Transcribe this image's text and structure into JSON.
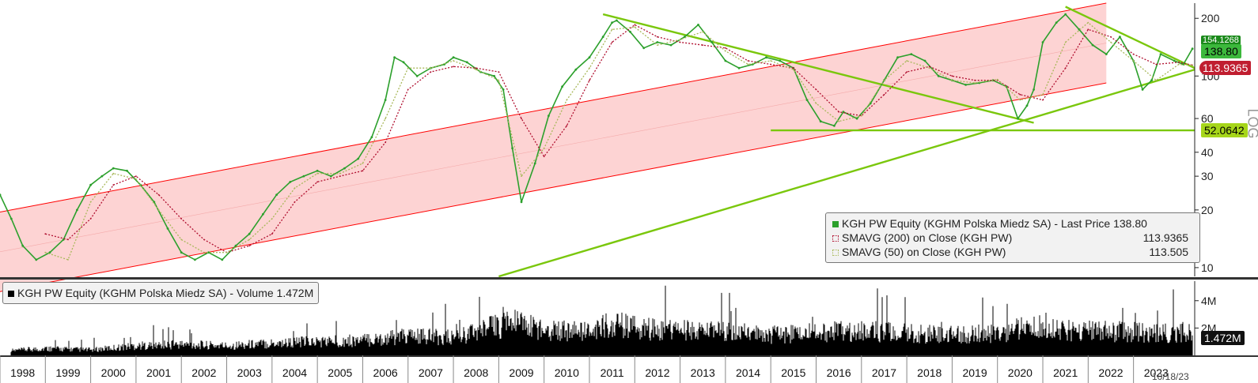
{
  "chart_data": [
    {
      "type": "line",
      "title": "",
      "xlabel": "",
      "ylabel": "",
      "y_scale": "log",
      "ylim": [
        9,
        240
      ],
      "y_ticks": [
        10,
        20,
        30,
        40,
        60,
        100,
        200
      ],
      "x_ticks": [
        "1998",
        "1999",
        "2000",
        "2001",
        "2002",
        "2003",
        "2004",
        "2005",
        "2006",
        "2007",
        "2008",
        "2009",
        "2010",
        "2011",
        "2012",
        "2013",
        "2014",
        "2015",
        "2016",
        "2017",
        "2018",
        "2019",
        "2020",
        "2021",
        "2022",
        "2023"
      ],
      "x_end_label": "10/18/23",
      "grid": false,
      "legend_position": "bottom-right",
      "series": [
        {
          "name": "KGH PW Equity (KGHM Polska Miedz SA) - Last Price",
          "color": "#2ca02c",
          "last_value": "138.80",
          "x": [
            1997.5,
            1997.75,
            1998.0,
            1998.3,
            1998.6,
            1998.9,
            1999.2,
            1999.5,
            1999.75,
            2000.0,
            2000.3,
            2000.6,
            2000.9,
            2001.2,
            2001.5,
            2001.8,
            2002.1,
            2002.4,
            2002.7,
            2003.0,
            2003.3,
            2003.6,
            2003.9,
            2004.2,
            2004.5,
            2004.8,
            2005.1,
            2005.4,
            2005.7,
            2006.0,
            2006.2,
            2006.4,
            2006.7,
            2007.0,
            2007.3,
            2007.5,
            2007.8,
            2008.1,
            2008.4,
            2008.6,
            2008.8,
            2009.0,
            2009.3,
            2009.6,
            2009.9,
            2010.2,
            2010.5,
            2010.8,
            2011.0,
            2011.1,
            2011.4,
            2011.7,
            2012.0,
            2012.3,
            2012.6,
            2012.9,
            2013.2,
            2013.5,
            2013.8,
            2014.1,
            2014.4,
            2014.7,
            2015.0,
            2015.3,
            2015.6,
            2015.9,
            2016.1,
            2016.4,
            2016.7,
            2017.0,
            2017.3,
            2017.6,
            2017.9,
            2018.2,
            2018.5,
            2018.8,
            2019.1,
            2019.4,
            2019.7,
            2019.95,
            2020.15,
            2020.3,
            2020.5,
            2020.8,
            2021.0,
            2021.3,
            2021.6,
            2021.9,
            2022.2,
            2022.5,
            2022.7,
            2022.9,
            2023.1,
            2023.4,
            2023.6,
            2023.8
          ],
          "y": [
            24,
            18,
            13,
            11,
            12,
            14,
            20,
            27,
            30,
            33,
            32,
            27,
            22,
            16,
            12,
            11,
            12,
            11,
            13,
            15,
            19,
            24,
            28,
            30,
            32,
            30,
            33,
            37,
            48,
            75,
            125,
            118,
            100,
            110,
            115,
            125,
            118,
            105,
            100,
            85,
            42,
            22,
            35,
            62,
            88,
            108,
            125,
            160,
            190,
            195,
            170,
            140,
            150,
            145,
            160,
            185,
            150,
            120,
            110,
            115,
            125,
            120,
            110,
            75,
            58,
            55,
            65,
            60,
            72,
            95,
            125,
            130,
            120,
            100,
            95,
            90,
            92,
            95,
            88,
            60,
            70,
            85,
            150,
            190,
            210,
            175,
            145,
            130,
            160,
            120,
            85,
            95,
            130,
            120,
            115,
            138.8
          ]
        },
        {
          "name": "SMAVG (200) on Close (KGH PW)",
          "color": "#b01030",
          "last_value": "113.9365",
          "x": [
            1998.5,
            1999.0,
            1999.5,
            2000.0,
            2000.5,
            2001.0,
            2001.5,
            2002.0,
            2002.5,
            2003.0,
            2003.5,
            2004.0,
            2004.5,
            2005.0,
            2005.5,
            2006.0,
            2006.5,
            2007.0,
            2007.5,
            2008.0,
            2008.5,
            2009.0,
            2009.5,
            2010.0,
            2010.5,
            2011.0,
            2011.5,
            2012.0,
            2012.5,
            2013.0,
            2013.5,
            2014.0,
            2014.5,
            2015.0,
            2015.5,
            2016.0,
            2016.5,
            2017.0,
            2017.5,
            2018.0,
            2018.5,
            2019.0,
            2019.5,
            2020.0,
            2020.5,
            2021.0,
            2021.5,
            2022.0,
            2022.5,
            2023.0,
            2023.5,
            2023.8
          ],
          "y": [
            15,
            14,
            18,
            27,
            30,
            24,
            18,
            14,
            12,
            13,
            15,
            22,
            28,
            30,
            32,
            45,
            85,
            105,
            112,
            110,
            105,
            60,
            38,
            55,
            95,
            150,
            185,
            160,
            150,
            145,
            140,
            120,
            115,
            110,
            85,
            65,
            62,
            80,
            105,
            112,
            100,
            95,
            95,
            80,
            75,
            110,
            175,
            160,
            130,
            115,
            118,
            113.94
          ]
        },
        {
          "name": "SMAVG (50) on Close (KGH PW)",
          "color": "#a8b85a",
          "last_value": "113.505",
          "x": [
            1998.5,
            1999.0,
            1999.5,
            2000.0,
            2000.5,
            2001.0,
            2001.5,
            2002.0,
            2002.5,
            2003.0,
            2003.5,
            2004.0,
            2004.5,
            2005.0,
            2005.5,
            2006.0,
            2006.5,
            2007.0,
            2007.5,
            2008.0,
            2008.5,
            2009.0,
            2009.5,
            2010.0,
            2010.5,
            2011.0,
            2011.5,
            2012.0,
            2012.5,
            2013.0,
            2013.5,
            2014.0,
            2014.5,
            2015.0,
            2015.5,
            2016.0,
            2016.5,
            2017.0,
            2017.5,
            2018.0,
            2018.5,
            2019.0,
            2019.5,
            2020.0,
            2020.5,
            2021.0,
            2021.5,
            2022.0,
            2022.5,
            2023.0,
            2023.5,
            2023.8
          ],
          "y": [
            12,
            11,
            22,
            31,
            29,
            20,
            14,
            12,
            12,
            14,
            18,
            26,
            31,
            31,
            35,
            60,
            110,
            110,
            120,
            108,
            95,
            30,
            42,
            75,
            110,
            175,
            180,
            145,
            155,
            170,
            135,
            115,
            120,
            108,
            72,
            58,
            62,
            95,
            120,
            110,
            95,
            92,
            96,
            75,
            80,
            150,
            190,
            150,
            120,
            95,
            115,
            113.5
          ]
        }
      ],
      "trendlines_color": "#7ac70c",
      "channel_color": "#ff0000",
      "channel_fill": "#fdd3d3",
      "annotations": [
        {
          "label": "154.1268",
          "value": 154.1268,
          "color": "#1a8a1a"
        },
        {
          "label": "138.80",
          "value": 138.8,
          "color": "#3cb83c"
        },
        {
          "label": "113.9365",
          "value": 113.9365,
          "color": "#c01e30"
        },
        {
          "label": "52.0642",
          "value": 52.0642,
          "color": "#a6d61a"
        }
      ],
      "axis_side_label": "LOG"
    },
    {
      "type": "bar",
      "title": "",
      "series": [
        {
          "name": "KGH PW Equity (KGHM Polska Miedz SA) - Volume",
          "last_value": "1.472M"
        }
      ],
      "y_ticks_labels": [
        "2M",
        "4M"
      ],
      "y_ticks": [
        2,
        4
      ],
      "unit": "M",
      "last_label": "1.472M",
      "approx_volume_profile": {
        "x": [
          1997.5,
          1998.5,
          1999.5,
          2000.5,
          2001.5,
          2002.5,
          2003.5,
          2004.5,
          2005.5,
          2006.5,
          2007.5,
          2008.3,
          2008.8,
          2009.5,
          2010.5,
          2011.0,
          2011.5,
          2012.5,
          2013.5,
          2014.5,
          2015.5,
          2016.5,
          2017.5,
          2018.5,
          2019.5,
          2020.3,
          2020.8,
          2021.5,
          2022.5,
          2023.5
        ],
        "y": [
          0.3,
          0.5,
          0.4,
          0.7,
          0.8,
          0.7,
          0.9,
          1.0,
          1.1,
          1.4,
          1.3,
          2.0,
          2.4,
          1.9,
          1.7,
          2.3,
          2.0,
          1.8,
          1.7,
          1.5,
          1.7,
          1.8,
          1.6,
          1.5,
          1.6,
          2.1,
          1.8,
          1.8,
          1.7,
          1.6
        ]
      }
    }
  ],
  "legend_price": {
    "items": [
      {
        "label": "KGH PW Equity (KGHM Polska Miedz SA) - Last Price 138.80",
        "value": "",
        "color": "#2ca02c"
      },
      {
        "label": "SMAVG (200)  on Close (KGH PW)",
        "value": "113.9365",
        "color": "#b01030"
      },
      {
        "label": "SMAVG (50)  on Close (KGH PW)",
        "value": "113.505",
        "color": "#a8b85a"
      }
    ]
  },
  "legend_volume": {
    "label": "KGH PW Equity (KGHM Polska Miedz SA) - Volume 1.472M",
    "color": "#000000"
  }
}
